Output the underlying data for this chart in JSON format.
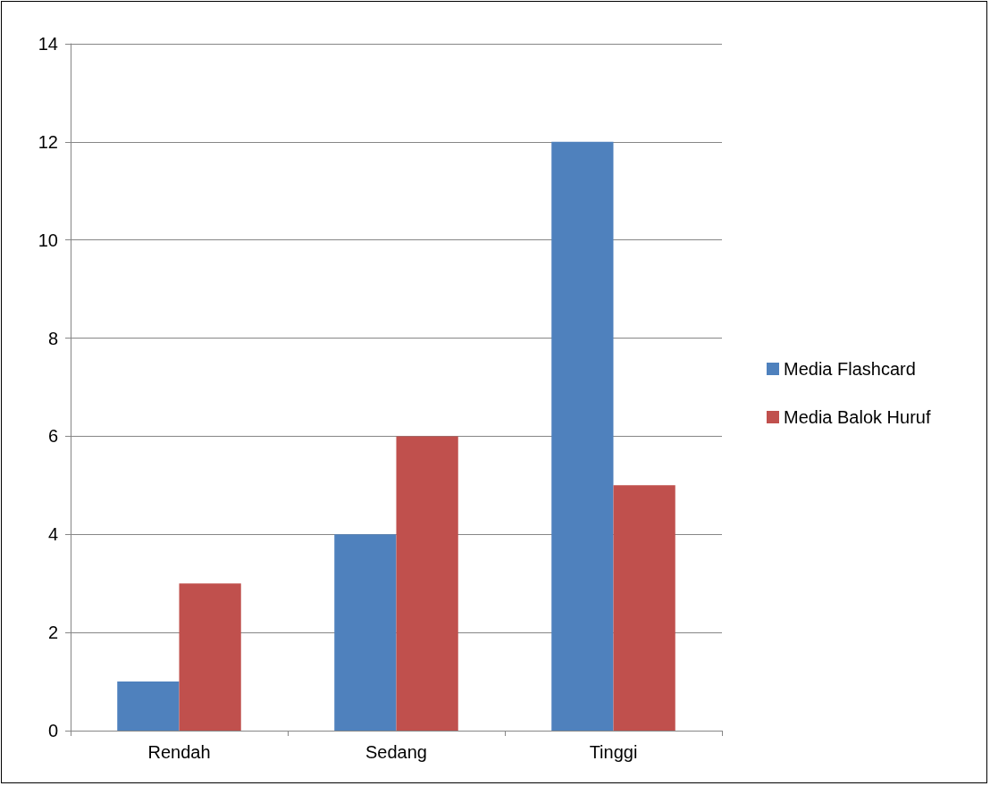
{
  "chart_data": {
    "type": "bar",
    "categories": [
      "Rendah",
      "Sedang",
      "Tinggi"
    ],
    "series": [
      {
        "name": "Media Flashcard",
        "color": "#4f81bd",
        "values": [
          1,
          4,
          12
        ]
      },
      {
        "name": "Media Balok Huruf",
        "color": "#c0504d",
        "values": [
          3,
          6,
          5
        ]
      }
    ],
    "ylim": [
      0,
      14
    ],
    "yticks": [
      0,
      2,
      4,
      6,
      8,
      10,
      12,
      14
    ],
    "grid": "y",
    "legend": "right"
  }
}
